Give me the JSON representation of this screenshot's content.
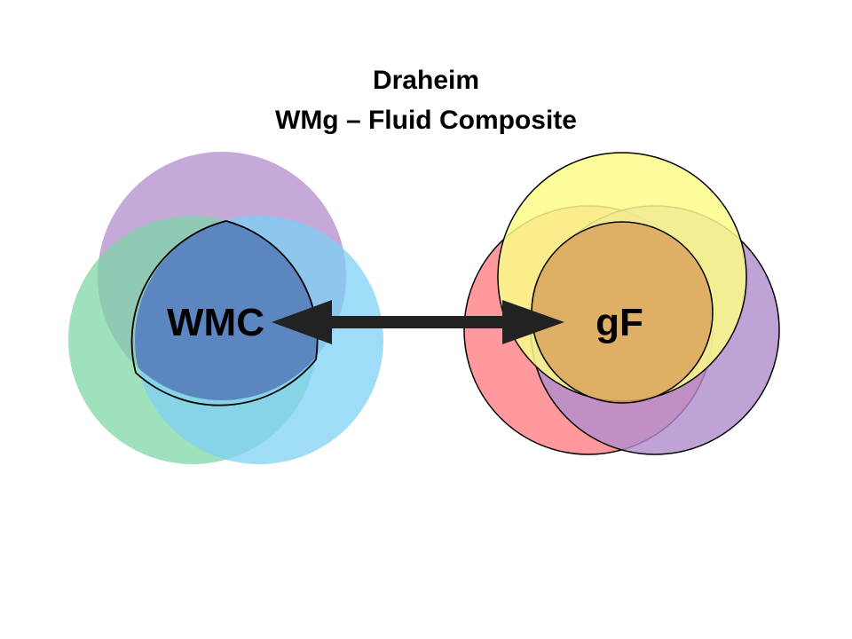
{
  "title": {
    "line1": "Draheim",
    "line2": "WMg – Fluid Composite"
  },
  "left_cluster": {
    "label": "WMC",
    "colors": {
      "purple": "#b08ccc",
      "green": "#7fd6a7",
      "blue": "#7ed0f4",
      "core": "#5b86bf"
    }
  },
  "right_cluster": {
    "label": "gF",
    "colors": {
      "red": "#ff7f86",
      "purple": "#b08ccc",
      "yellow": "#fcfc88",
      "core": "#dca45e"
    }
  },
  "arrow": {
    "direction": "bidirectional",
    "color": "#222222"
  }
}
